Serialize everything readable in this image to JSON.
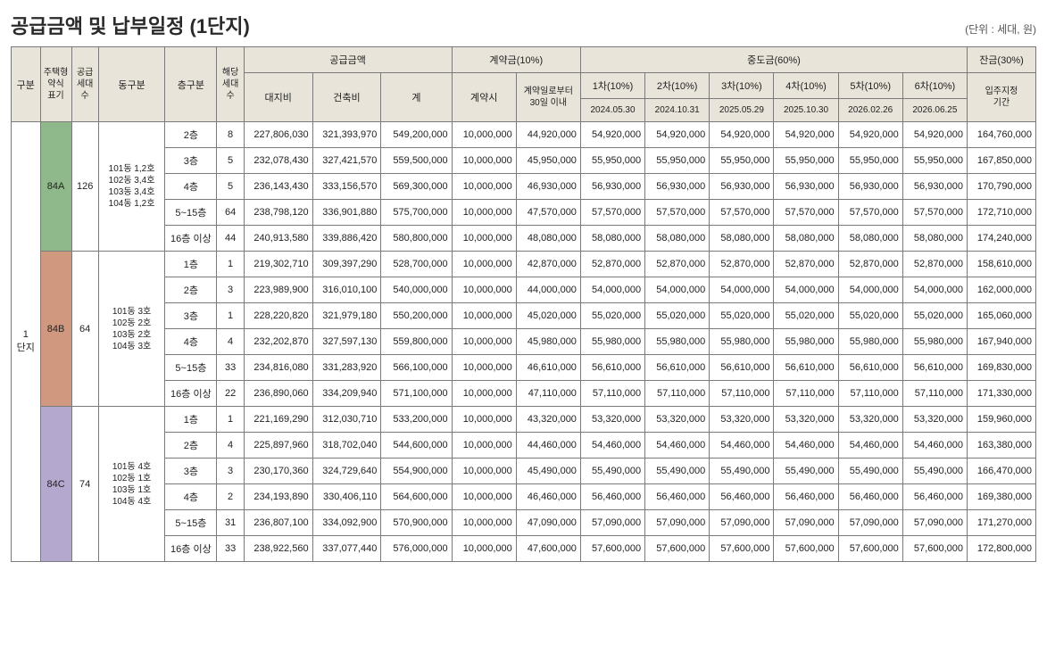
{
  "title": "공급금액 및 납부일정 (1단지)",
  "unit_label": "(단위 : 세대, 원)",
  "headers": {
    "gubun": "구분",
    "type": "주택형\n약식\n표기",
    "supply_cnt": "공급\n세대\n수",
    "dong": "동구분",
    "floor": "층구분",
    "unit_cnt": "해당\n세대\n수",
    "supply_amount": "공급금액",
    "land": "대지비",
    "bldg": "건축비",
    "total": "계",
    "contract_grp": "계약금(10%)",
    "contract_at": "계약시",
    "contract_30": "계약일로부터\n30일 이내",
    "interim_grp": "중도금(60%)",
    "i1": "1차(10%)",
    "i2": "2차(10%)",
    "i3": "3차(10%)",
    "i4": "4차(10%)",
    "i5": "5차(10%)",
    "i6": "6차(10%)",
    "d1": "2024.05.30",
    "d2": "2024.10.31",
    "d3": "2025.05.29",
    "d4": "2025.10.30",
    "d5": "2026.02.26",
    "d6": "2026.06.25",
    "balance_grp": "잔금(30%)",
    "balance": "입주지정\n기간"
  },
  "complex_label": "1\n단지",
  "groups": [
    {
      "type": "84A",
      "color_class": "c84a",
      "supply": "126",
      "dong": "101동 1,2호\n102동 3,4호\n103동 3,4호\n104동 1,2호",
      "rows": [
        {
          "floor": "2층",
          "cnt": "8",
          "land": "227,806,030",
          "bldg": "321,393,970",
          "total": "549,200,000",
          "c1": "10,000,000",
          "c2": "44,920,000",
          "p": "54,920,000",
          "bal": "164,760,000"
        },
        {
          "floor": "3층",
          "cnt": "5",
          "land": "232,078,430",
          "bldg": "327,421,570",
          "total": "559,500,000",
          "c1": "10,000,000",
          "c2": "45,950,000",
          "p": "55,950,000",
          "bal": "167,850,000"
        },
        {
          "floor": "4층",
          "cnt": "5",
          "land": "236,143,430",
          "bldg": "333,156,570",
          "total": "569,300,000",
          "c1": "10,000,000",
          "c2": "46,930,000",
          "p": "56,930,000",
          "bal": "170,790,000"
        },
        {
          "floor": "5~15층",
          "cnt": "64",
          "land": "238,798,120",
          "bldg": "336,901,880",
          "total": "575,700,000",
          "c1": "10,000,000",
          "c2": "47,570,000",
          "p": "57,570,000",
          "bal": "172,710,000"
        },
        {
          "floor": "16층 이상",
          "cnt": "44",
          "land": "240,913,580",
          "bldg": "339,886,420",
          "total": "580,800,000",
          "c1": "10,000,000",
          "c2": "48,080,000",
          "p": "58,080,000",
          "bal": "174,240,000"
        }
      ]
    },
    {
      "type": "84B",
      "color_class": "c84b",
      "supply": "64",
      "dong": "101동 3호\n102동 2호\n103동 2호\n104동 3호",
      "rows": [
        {
          "floor": "1층",
          "cnt": "1",
          "land": "219,302,710",
          "bldg": "309,397,290",
          "total": "528,700,000",
          "c1": "10,000,000",
          "c2": "42,870,000",
          "p": "52,870,000",
          "bal": "158,610,000"
        },
        {
          "floor": "2층",
          "cnt": "3",
          "land": "223,989,900",
          "bldg": "316,010,100",
          "total": "540,000,000",
          "c1": "10,000,000",
          "c2": "44,000,000",
          "p": "54,000,000",
          "bal": "162,000,000"
        },
        {
          "floor": "3층",
          "cnt": "1",
          "land": "228,220,820",
          "bldg": "321,979,180",
          "total": "550,200,000",
          "c1": "10,000,000",
          "c2": "45,020,000",
          "p": "55,020,000",
          "bal": "165,060,000"
        },
        {
          "floor": "4층",
          "cnt": "4",
          "land": "232,202,870",
          "bldg": "327,597,130",
          "total": "559,800,000",
          "c1": "10,000,000",
          "c2": "45,980,000",
          "p": "55,980,000",
          "bal": "167,940,000"
        },
        {
          "floor": "5~15층",
          "cnt": "33",
          "land": "234,816,080",
          "bldg": "331,283,920",
          "total": "566,100,000",
          "c1": "10,000,000",
          "c2": "46,610,000",
          "p": "56,610,000",
          "bal": "169,830,000"
        },
        {
          "floor": "16층 이상",
          "cnt": "22",
          "land": "236,890,060",
          "bldg": "334,209,940",
          "total": "571,100,000",
          "c1": "10,000,000",
          "c2": "47,110,000",
          "p": "57,110,000",
          "bal": "171,330,000"
        }
      ]
    },
    {
      "type": "84C",
      "color_class": "c84c",
      "supply": "74",
      "dong": "101동 4호\n102동 1호\n103동 1호\n104동 4호",
      "rows": [
        {
          "floor": "1층",
          "cnt": "1",
          "land": "221,169,290",
          "bldg": "312,030,710",
          "total": "533,200,000",
          "c1": "10,000,000",
          "c2": "43,320,000",
          "p": "53,320,000",
          "bal": "159,960,000"
        },
        {
          "floor": "2층",
          "cnt": "4",
          "land": "225,897,960",
          "bldg": "318,702,040",
          "total": "544,600,000",
          "c1": "10,000,000",
          "c2": "44,460,000",
          "p": "54,460,000",
          "bal": "163,380,000"
        },
        {
          "floor": "3층",
          "cnt": "3",
          "land": "230,170,360",
          "bldg": "324,729,640",
          "total": "554,900,000",
          "c1": "10,000,000",
          "c2": "45,490,000",
          "p": "55,490,000",
          "bal": "166,470,000"
        },
        {
          "floor": "4층",
          "cnt": "2",
          "land": "234,193,890",
          "bldg": "330,406,110",
          "total": "564,600,000",
          "c1": "10,000,000",
          "c2": "46,460,000",
          "p": "56,460,000",
          "bal": "169,380,000"
        },
        {
          "floor": "5~15층",
          "cnt": "31",
          "land": "236,807,100",
          "bldg": "334,092,900",
          "total": "570,900,000",
          "c1": "10,000,000",
          "c2": "47,090,000",
          "p": "57,090,000",
          "bal": "171,270,000"
        },
        {
          "floor": "16층 이상",
          "cnt": "33",
          "land": "238,922,560",
          "bldg": "337,077,440",
          "total": "576,000,000",
          "c1": "10,000,000",
          "c2": "47,600,000",
          "p": "57,600,000",
          "bal": "172,800,000"
        }
      ]
    }
  ],
  "col_widths": [
    "28",
    "30",
    "26",
    "64",
    "50",
    "26",
    "66",
    "66",
    "68",
    "62",
    "62",
    "62",
    "62",
    "62",
    "62",
    "62",
    "62",
    "66"
  ]
}
